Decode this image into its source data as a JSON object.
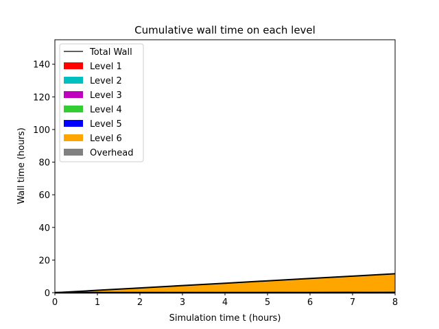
{
  "chart_data": {
    "type": "area",
    "title": "Cumulative wall time on each level",
    "xlabel": "Simulation time t (hours)",
    "ylabel": "Wall time (hours)",
    "xlim": [
      0,
      8
    ],
    "ylim": [
      0,
      155
    ],
    "xticks": [
      0,
      1,
      2,
      3,
      4,
      5,
      6,
      7,
      8
    ],
    "yticks": [
      0,
      20,
      40,
      60,
      80,
      100,
      120,
      140
    ],
    "legend_position": "top-left",
    "grid": false,
    "x": [
      0,
      1,
      2,
      3,
      4,
      5,
      6,
      7,
      8
    ],
    "series": [
      {
        "name": "Level 1",
        "color": "#ff0000",
        "values": [
          0,
          0.05,
          0.1,
          0.15,
          0.2,
          0.25,
          0.3,
          0.35,
          0.4
        ]
      },
      {
        "name": "Level 2",
        "color": "#00bfbf",
        "values": [
          0,
          0.03,
          0.06,
          0.09,
          0.12,
          0.15,
          0.18,
          0.21,
          0.24
        ]
      },
      {
        "name": "Level 3",
        "color": "#bf00bf",
        "values": [
          0,
          0.02,
          0.04,
          0.06,
          0.08,
          0.1,
          0.12,
          0.14,
          0.16
        ]
      },
      {
        "name": "Level 4",
        "color": "#32cd32",
        "values": [
          0,
          0.01,
          0.02,
          0.03,
          0.04,
          0.05,
          0.06,
          0.07,
          0.08
        ]
      },
      {
        "name": "Level 5",
        "color": "#0000ff",
        "values": [
          0,
          0.01,
          0.02,
          0.03,
          0.04,
          0.05,
          0.06,
          0.07,
          0.08
        ]
      },
      {
        "name": "Level 6",
        "color": "#ffa500",
        "values": [
          0,
          1.3,
          2.6,
          3.9,
          5.2,
          6.5,
          7.8,
          9.1,
          10.4
        ]
      },
      {
        "name": "Overhead",
        "color": "#808080",
        "values": [
          0,
          0.01,
          0.02,
          0.03,
          0.04,
          0.05,
          0.06,
          0.07,
          0.08
        ]
      }
    ],
    "total_wall": {
      "name": "Total Wall",
      "color": "#000000",
      "values": [
        0,
        1.45,
        2.9,
        4.35,
        5.8,
        7.25,
        8.7,
        10.15,
        11.6
      ]
    }
  }
}
